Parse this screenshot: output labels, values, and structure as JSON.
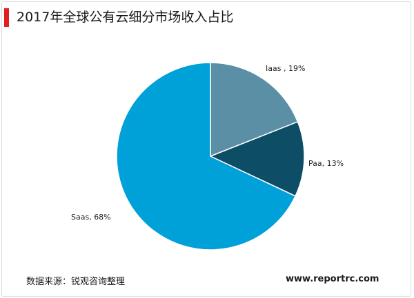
{
  "title": "2017年全球公有云细分市场收入占比",
  "source": "数据来源：锐观咨询整理",
  "website": "www.reportrc.com",
  "chart_data": {
    "type": "pie",
    "slices": [
      {
        "label": "Iaas , 19%",
        "value": 19,
        "color": "#5b8fa6"
      },
      {
        "label": "Paa, 13%",
        "value": 13,
        "color": "#0e4d66"
      },
      {
        "label": "Saas, 68%",
        "value": 68,
        "color": "#00a0d8"
      }
    ]
  }
}
